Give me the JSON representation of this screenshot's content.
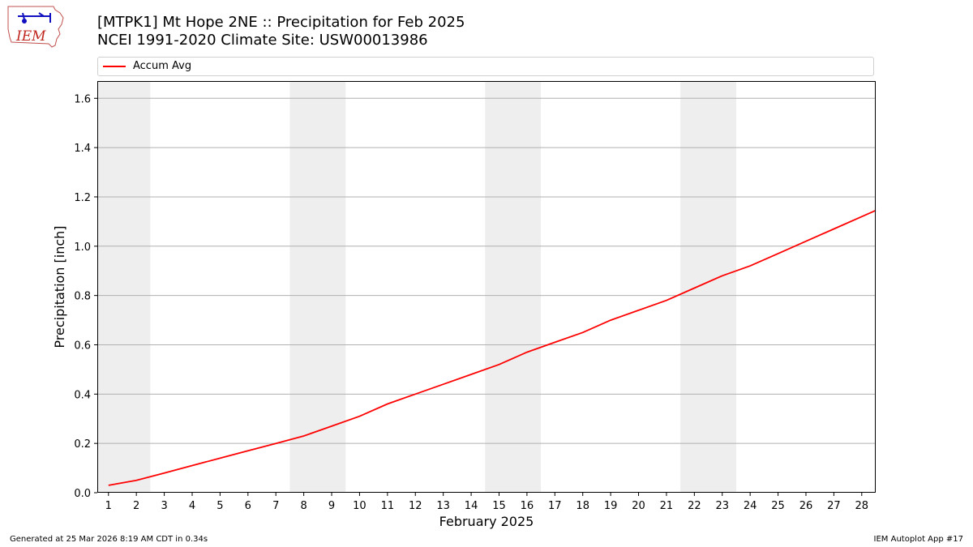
{
  "header": {
    "title_line1": "[MTPK1] Mt Hope 2NE :: Precipitation for Feb 2025",
    "title_line2": "NCEI 1991-2020 Climate Site: USW00013986"
  },
  "logo": {
    "text": "IEM",
    "icon": "iowa-state-weather-logo"
  },
  "footer": {
    "generated": "Generated at 25 Mar 2026 8:19 AM CDT in 0.34s",
    "app": "IEM Autoplot App #17"
  },
  "colors": {
    "series": "#ff0000",
    "weekend": "#eeeeee",
    "grid": "#b0b0b0"
  },
  "chart_data": {
    "type": "line",
    "xlabel": "February 2025",
    "ylabel": "Precipitation [inch]",
    "xlim": [
      0.6,
      28.5
    ],
    "ylim": [
      0,
      1.67
    ],
    "yticks": [
      0.0,
      0.2,
      0.4,
      0.6,
      0.8,
      1.0,
      1.2,
      1.4,
      1.6
    ],
    "ytick_labels": [
      "0.0",
      "0.2",
      "0.4",
      "0.6",
      "0.8",
      "1.0",
      "1.2",
      "1.4",
      "1.6"
    ],
    "xticks": [
      1,
      2,
      3,
      4,
      5,
      6,
      7,
      8,
      9,
      10,
      11,
      12,
      13,
      14,
      15,
      16,
      17,
      18,
      19,
      20,
      21,
      22,
      23,
      24,
      25,
      26,
      27,
      28
    ],
    "xtick_labels": [
      "1",
      "2",
      "3",
      "4",
      "5",
      "6",
      "7",
      "8",
      "9",
      "10",
      "11",
      "12",
      "13",
      "14",
      "15",
      "16",
      "17",
      "18",
      "19",
      "20",
      "21",
      "22",
      "23",
      "24",
      "25",
      "26",
      "27",
      "28"
    ],
    "grid": "horizontal",
    "legend_position": "top",
    "weekend_bands": [
      [
        0.5,
        2.5
      ],
      [
        7.5,
        9.5
      ],
      [
        14.5,
        16.5
      ],
      [
        21.5,
        23.5
      ]
    ],
    "series": [
      {
        "name": "Accum Avg",
        "color": "#ff0000",
        "x": [
          1,
          2,
          3,
          4,
          5,
          6,
          7,
          8,
          9,
          10,
          11,
          12,
          13,
          14,
          15,
          16,
          17,
          18,
          19,
          20,
          21,
          22,
          23,
          24,
          25,
          26,
          27,
          28,
          28.5
        ],
        "y": [
          0.03,
          0.05,
          0.08,
          0.11,
          0.14,
          0.17,
          0.2,
          0.23,
          0.27,
          0.31,
          0.36,
          0.4,
          0.44,
          0.48,
          0.52,
          0.57,
          0.61,
          0.65,
          0.7,
          0.74,
          0.78,
          0.83,
          0.88,
          0.92,
          0.97,
          1.02,
          1.07,
          1.12,
          1.145
        ]
      }
    ]
  }
}
